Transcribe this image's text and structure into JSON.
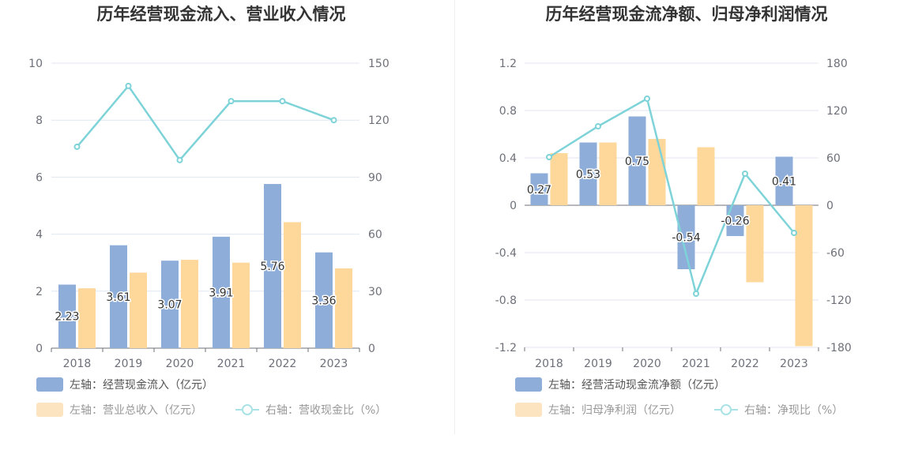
{
  "colors": {
    "bar1": "#8eadd9",
    "bar2": "#fed79a",
    "line": "#7dd3d8",
    "grid": "#e0e6f1",
    "axis": "#6e7079"
  },
  "chart_data": [
    {
      "type": "bar",
      "title": "历年经营现金流入、营业收入情况",
      "categories": [
        "2018",
        "2019",
        "2020",
        "2021",
        "2022",
        "2023"
      ],
      "left_axis": {
        "ylim": [
          0,
          10
        ],
        "ticks": [
          "0",
          "2",
          "4",
          "6",
          "8",
          "10"
        ],
        "tick_values": [
          0,
          2,
          4,
          6,
          8,
          10
        ]
      },
      "right_axis": {
        "ylim": [
          0,
          150
        ],
        "ticks": [
          "0",
          "30",
          "60",
          "90",
          "120",
          "150"
        ],
        "tick_values": [
          0,
          30,
          60,
          90,
          120,
          150
        ]
      },
      "series": [
        {
          "name": "左轴：经营现金流入（亿元）",
          "type": "bar",
          "axis": "left",
          "values": [
            2.23,
            3.61,
            3.07,
            3.91,
            5.76,
            3.36
          ],
          "labels": [
            "2.23",
            "3.61",
            "3.07",
            "3.91",
            "5.76",
            "3.36"
          ],
          "color_key": "bar1"
        },
        {
          "name": "左轴：营业总收入（亿元）",
          "type": "bar",
          "axis": "left",
          "values": [
            2.1,
            2.65,
            3.1,
            3.0,
            4.42,
            2.8
          ],
          "color_key": "bar2"
        },
        {
          "name": "右轴：营收现金比（%）",
          "type": "line",
          "axis": "right",
          "values": [
            106,
            138,
            99,
            130,
            130,
            120
          ],
          "color_key": "line"
        }
      ]
    },
    {
      "type": "bar",
      "title": "历年经营现金流净额、归母净利润情况",
      "categories": [
        "2018",
        "2019",
        "2020",
        "2021",
        "2022",
        "2023"
      ],
      "left_axis": {
        "ylim": [
          -1.2,
          1.2
        ],
        "ticks": [
          "-1.2",
          "-0.8",
          "-0.4",
          "0",
          "0.4",
          "0.8",
          "1.2"
        ],
        "tick_values": [
          -1.2,
          -0.8,
          -0.4,
          0,
          0.4,
          0.8,
          1.2
        ]
      },
      "right_axis": {
        "ylim": [
          -180,
          180
        ],
        "ticks": [
          "-180",
          "-120",
          "-60",
          "0",
          "60",
          "120",
          "180"
        ],
        "tick_values": [
          -180,
          -120,
          -60,
          0,
          60,
          120,
          180
        ]
      },
      "series": [
        {
          "name": "左轴：经营活动现金流净额（亿元）",
          "type": "bar",
          "axis": "left",
          "values": [
            0.27,
            0.53,
            0.75,
            -0.54,
            -0.26,
            0.41
          ],
          "labels": [
            "0.27",
            "0.53",
            "0.75",
            "-0.54",
            "-0.26",
            "0.41"
          ],
          "color_key": "bar1"
        },
        {
          "name": "左轴：归母净利润（亿元）",
          "type": "bar",
          "axis": "left",
          "values": [
            0.44,
            0.53,
            0.56,
            0.49,
            -0.65,
            -1.19
          ],
          "color_key": "bar2"
        },
        {
          "name": "右轴：净现比（%）",
          "type": "line",
          "axis": "right",
          "values": [
            61,
            100,
            135,
            -112,
            40,
            -35
          ],
          "color_key": "line"
        }
      ]
    }
  ]
}
